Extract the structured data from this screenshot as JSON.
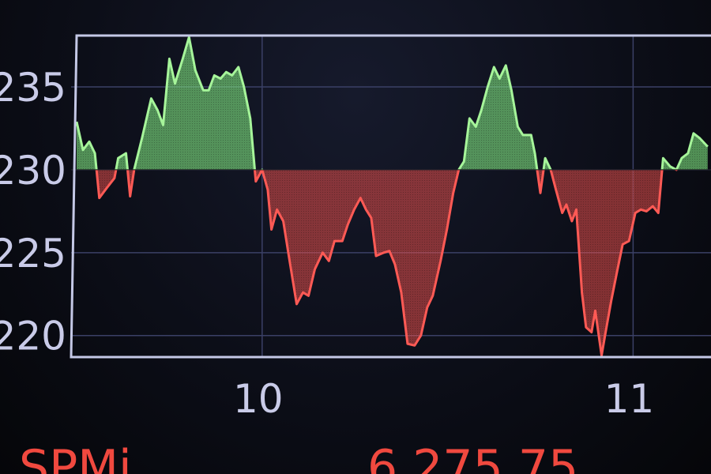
{
  "chart_data": {
    "type": "area",
    "title": "",
    "xlabel": "",
    "ylabel": "",
    "baseline": 230,
    "xlim": [
      9.485,
      11.21
    ],
    "ylim": [
      218.7,
      238.1
    ],
    "grid": true,
    "y_ticks": [
      {
        "value": 235,
        "label": "235"
      },
      {
        "value": 230,
        "label": "230"
      },
      {
        "value": 225,
        "label": "225"
      },
      {
        "value": 220,
        "label": "220"
      }
    ],
    "x_ticks": [
      {
        "value": 10,
        "label": "10"
      },
      {
        "value": 11,
        "label": "11"
      }
    ],
    "colors": {
      "above": "#7ee07e",
      "below": "#e8504c",
      "grid": "#3b4066",
      "frame": "#c4c8e6",
      "ticks": "#c9cbe8"
    },
    "x": [
      9.5,
      9.517,
      9.534,
      9.549,
      9.561,
      9.581,
      9.602,
      9.612,
      9.633,
      9.644,
      9.655,
      9.676,
      9.701,
      9.718,
      9.733,
      9.75,
      9.765,
      9.786,
      9.803,
      9.82,
      9.841,
      9.856,
      9.871,
      9.888,
      9.903,
      9.919,
      9.936,
      9.951,
      9.968,
      9.983,
      10.0,
      10.015,
      10.025,
      10.04,
      10.057,
      10.074,
      10.093,
      10.11,
      10.125,
      10.142,
      10.163,
      10.18,
      10.195,
      10.216,
      10.231,
      10.248,
      10.265,
      10.28,
      10.294,
      10.307,
      10.328,
      10.343,
      10.358,
      10.375,
      10.392,
      10.411,
      10.428,
      10.445,
      10.46,
      10.481,
      10.498,
      10.515,
      10.53,
      10.544,
      10.559,
      10.576,
      10.591,
      10.608,
      10.625,
      10.64,
      10.657,
      10.672,
      10.689,
      10.703,
      10.725,
      10.735,
      10.75,
      10.763,
      10.778,
      10.792,
      10.809,
      10.82,
      10.835,
      10.847,
      10.862,
      10.873,
      10.888,
      10.898,
      10.915,
      10.926,
      10.941,
      10.958,
      10.972,
      10.989,
      11.006,
      11.021,
      11.036,
      11.053,
      11.068,
      11.081,
      11.1,
      11.117,
      11.131,
      11.148,
      11.163,
      11.18,
      11.201
    ],
    "values": [
      232.9,
      231.2,
      231.7,
      231.0,
      228.3,
      228.9,
      229.5,
      230.7,
      231.0,
      228.4,
      230.0,
      231.9,
      234.3,
      233.6,
      232.7,
      236.7,
      235.2,
      236.7,
      238.0,
      236.0,
      234.8,
      234.8,
      235.7,
      235.5,
      235.9,
      235.7,
      236.2,
      235.0,
      233.1,
      229.3,
      230.0,
      228.8,
      226.4,
      227.6,
      226.9,
      224.5,
      221.9,
      222.6,
      222.4,
      224.0,
      225.0,
      224.5,
      225.7,
      225.7,
      226.7,
      227.6,
      228.3,
      227.6,
      227.1,
      224.8,
      225.0,
      225.1,
      224.3,
      222.6,
      219.5,
      219.4,
      220.0,
      221.7,
      222.4,
      224.5,
      226.4,
      228.6,
      230.0,
      230.5,
      233.1,
      232.6,
      233.6,
      235.0,
      236.2,
      235.5,
      236.3,
      234.8,
      232.6,
      232.1,
      232.1,
      231.0,
      228.6,
      230.7,
      230.0,
      228.8,
      227.4,
      227.9,
      226.9,
      227.6,
      222.6,
      220.5,
      220.2,
      221.5,
      218.8,
      220.2,
      222.1,
      224.0,
      225.5,
      225.7,
      227.4,
      227.6,
      227.5,
      227.8,
      227.4,
      230.7,
      230.2,
      230.0,
      230.7,
      231.0,
      232.2,
      231.9,
      231.4
    ]
  },
  "ticker": {
    "symbol": "SPMi",
    "price": "6,275.75"
  }
}
